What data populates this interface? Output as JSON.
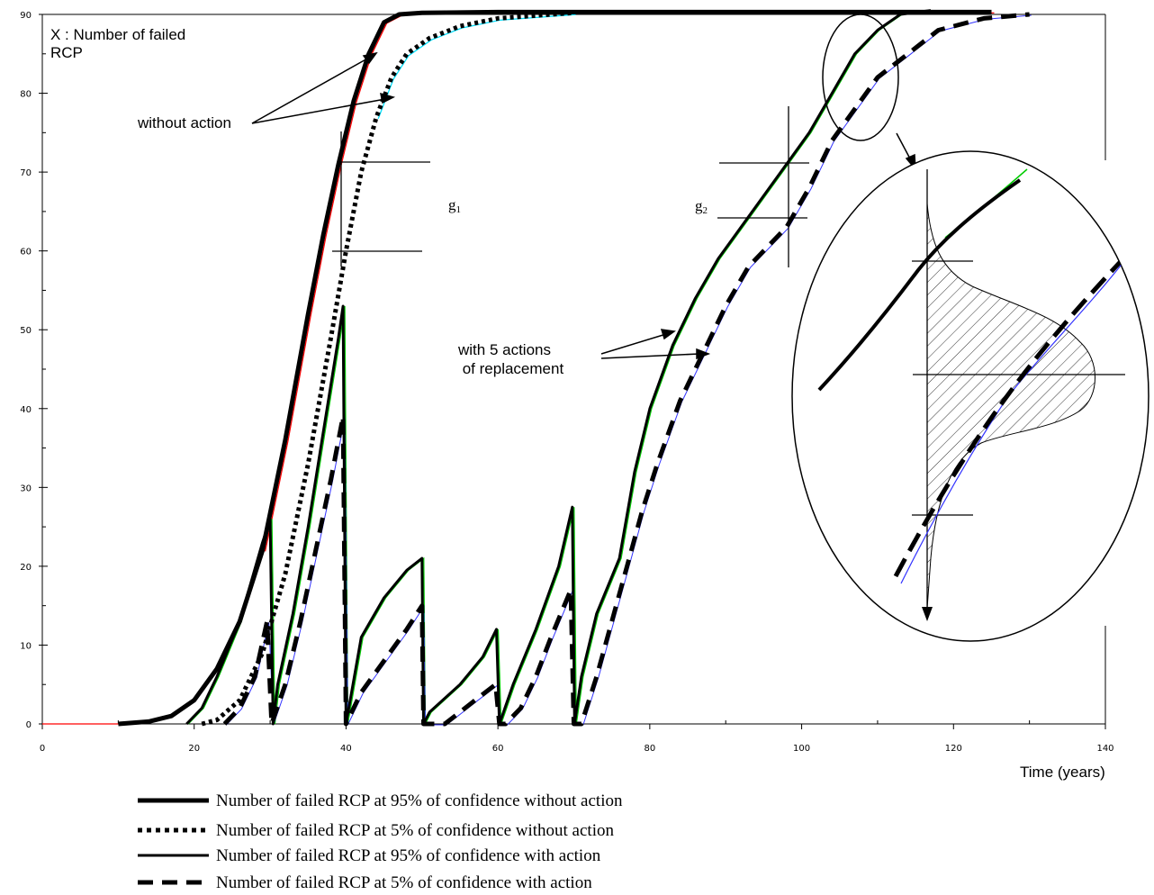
{
  "chart_data": {
    "type": "line",
    "ylabel": "X : Number of failed\nRCP",
    "xlabel": "Time (years)",
    "xlim": [
      0,
      140
    ],
    "ylim": [
      0,
      90
    ],
    "x_ticks": [
      0,
      20,
      40,
      60,
      80,
      100,
      120,
      140
    ],
    "y_ticks": [
      0,
      10,
      20,
      30,
      40,
      50,
      60,
      70,
      80,
      90
    ],
    "annotations": {
      "without_action": "without action",
      "with_actions": "with 5 actions\n of replacement",
      "g1": "g",
      "g1_sub": "1",
      "g2": "g",
      "g2_sub": "2"
    },
    "series": [
      {
        "name": "Number of failed RCP at 95% of confidence without action",
        "style": "thick-solid",
        "points": [
          [
            10,
            0
          ],
          [
            14,
            0.3
          ],
          [
            17,
            1
          ],
          [
            20,
            3
          ],
          [
            23,
            7
          ],
          [
            26,
            13
          ],
          [
            29,
            22
          ],
          [
            32,
            36
          ],
          [
            35,
            52
          ],
          [
            37,
            62
          ],
          [
            39,
            71
          ],
          [
            41,
            79
          ],
          [
            43,
            85
          ],
          [
            45,
            89
          ],
          [
            47,
            90
          ],
          [
            50,
            90.2
          ],
          [
            60,
            90.3
          ],
          [
            125,
            90.3
          ]
        ]
      },
      {
        "name": "Number of failed RCP at 5% of confidence without action",
        "style": "dotted",
        "points": [
          [
            21,
            0
          ],
          [
            23,
            0.5
          ],
          [
            26,
            3
          ],
          [
            29,
            9
          ],
          [
            32,
            19
          ],
          [
            35,
            33
          ],
          [
            38,
            49
          ],
          [
            40,
            60
          ],
          [
            42,
            70
          ],
          [
            44,
            77
          ],
          [
            46,
            82
          ],
          [
            48,
            85
          ],
          [
            51,
            87
          ],
          [
            55,
            88.5
          ],
          [
            60,
            89.5
          ],
          [
            70,
            90.2
          ]
        ]
      },
      {
        "name": "Number of failed RCP at 95% of confidence with action",
        "style": "solid",
        "points": [
          [
            19,
            0
          ],
          [
            21,
            2
          ],
          [
            23,
            6
          ],
          [
            26,
            13
          ],
          [
            29,
            23
          ],
          [
            30,
            26
          ],
          [
            30.4,
            0
          ],
          [
            31,
            5
          ],
          [
            33,
            14
          ],
          [
            35,
            25
          ],
          [
            37,
            37
          ],
          [
            39,
            49
          ],
          [
            39.6,
            53
          ],
          [
            40,
            0
          ],
          [
            42,
            11
          ],
          [
            45,
            16
          ],
          [
            48,
            19.5
          ],
          [
            50,
            21
          ],
          [
            50.2,
            0
          ],
          [
            51,
            1.5
          ],
          [
            55,
            5
          ],
          [
            58,
            8.5
          ],
          [
            59.8,
            12
          ],
          [
            60.2,
            0
          ],
          [
            62,
            5
          ],
          [
            65,
            12
          ],
          [
            68,
            20
          ],
          [
            69.8,
            27.5
          ],
          [
            70.1,
            0
          ],
          [
            71,
            6
          ],
          [
            73,
            14
          ],
          [
            76,
            21
          ],
          [
            78,
            32
          ],
          [
            80,
            40
          ],
          [
            83,
            48
          ],
          [
            86,
            54
          ],
          [
            89,
            59
          ],
          [
            92,
            63
          ],
          [
            95,
            67
          ],
          [
            98,
            71
          ],
          [
            101,
            75
          ],
          [
            104,
            80
          ],
          [
            107,
            85
          ],
          [
            110,
            88
          ],
          [
            113,
            90
          ],
          [
            117,
            90.5
          ]
        ]
      },
      {
        "name": "Number of failed RCP at 5% of confidence with action",
        "style": "dashed",
        "points": [
          [
            24,
            0
          ],
          [
            26,
            2
          ],
          [
            28,
            6
          ],
          [
            29.6,
            13
          ],
          [
            30.2,
            0
          ],
          [
            32,
            5
          ],
          [
            34,
            13
          ],
          [
            36,
            22
          ],
          [
            38,
            31
          ],
          [
            39.6,
            39
          ],
          [
            40,
            0
          ],
          [
            42,
            4
          ],
          [
            45,
            8
          ],
          [
            48,
            12
          ],
          [
            50,
            15
          ],
          [
            50.2,
            0
          ],
          [
            53,
            0
          ],
          [
            55,
            1.5
          ],
          [
            57,
            3
          ],
          [
            59.7,
            5
          ],
          [
            60.2,
            0
          ],
          [
            61,
            0
          ],
          [
            63,
            2
          ],
          [
            65,
            6
          ],
          [
            67,
            11
          ],
          [
            69.6,
            17
          ],
          [
            70,
            0
          ],
          [
            71,
            0
          ],
          [
            73,
            6
          ],
          [
            75,
            13
          ],
          [
            77,
            20
          ],
          [
            79,
            27
          ],
          [
            81,
            33
          ],
          [
            84,
            41
          ],
          [
            87,
            47
          ],
          [
            90,
            53
          ],
          [
            93,
            58
          ],
          [
            96,
            61
          ],
          [
            98,
            63
          ],
          [
            101,
            68
          ],
          [
            104,
            74
          ],
          [
            107,
            78
          ],
          [
            110,
            82
          ],
          [
            114,
            85
          ],
          [
            118,
            88
          ],
          [
            124,
            89.5
          ],
          [
            130,
            90
          ]
        ]
      }
    ],
    "legend": [
      "Number of failed RCP at 95% of confidence without action",
      "Number of failed RCP at 5% of confidence without action",
      "Number of failed RCP at 95% of confidence with action",
      "Number of failed RCP at 5% of confidence with action"
    ],
    "colors": {
      "axis": "#000000",
      "red_trace": "#ff0000",
      "cyan_trace": "#00e0ff",
      "green_trace": "#00cc00",
      "blue_trace": "#3333ff"
    }
  }
}
